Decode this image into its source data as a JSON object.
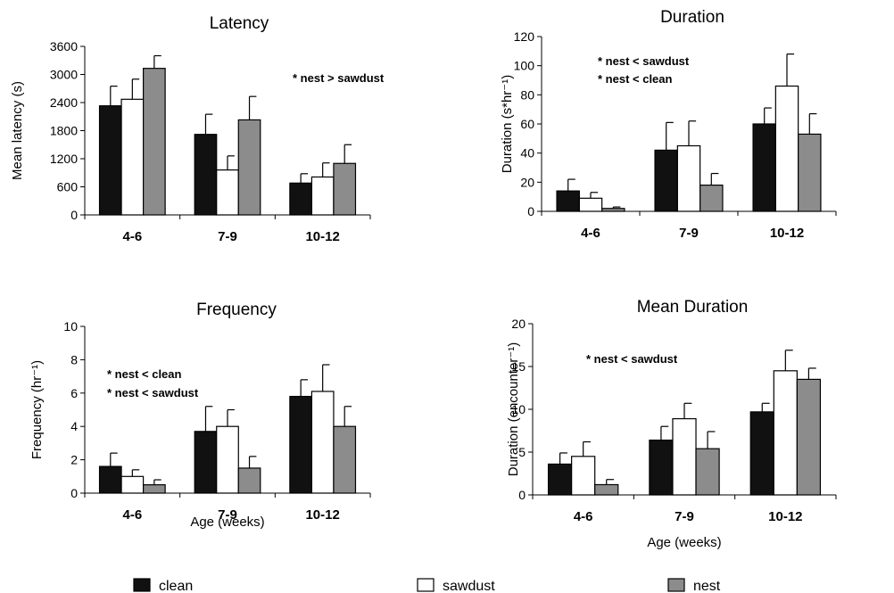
{
  "colors": {
    "clean": "#111111",
    "sawdust": "#ffffff",
    "nest": "#8c8c8c",
    "axis": "#000000"
  },
  "legend": [
    {
      "key": "clean",
      "label": "clean"
    },
    {
      "key": "sawdust",
      "label": "sawdust"
    },
    {
      "key": "nest",
      "label": "nest"
    }
  ],
  "chart_data": [
    {
      "type": "bar",
      "title": "Latency",
      "ylabel": "Mean latency (s)",
      "xlabel": "",
      "categories": [
        "4-6",
        "7-9",
        "10-12"
      ],
      "ylim": [
        0,
        3600
      ],
      "yticks": [
        "0",
        "600",
        "1200",
        "1800",
        "2400",
        "3000",
        "3600"
      ],
      "annotations": [
        "* nest > sawdust"
      ],
      "series": [
        {
          "name": "clean",
          "values": [
            2330,
            1720,
            680
          ],
          "errors": [
            420,
            430,
            200
          ]
        },
        {
          "name": "sawdust",
          "values": [
            2470,
            960,
            810
          ],
          "errors": [
            430,
            300,
            300
          ]
        },
        {
          "name": "nest",
          "values": [
            3130,
            2030,
            1100
          ],
          "errors": [
            270,
            500,
            400
          ]
        }
      ]
    },
    {
      "type": "bar",
      "title": "Duration",
      "ylabel": "Duration (s*hr⁻¹)",
      "xlabel": "",
      "categories": [
        "4-6",
        "7-9",
        "10-12"
      ],
      "ylim": [
        0,
        120
      ],
      "yticks": [
        "0",
        "20",
        "40",
        "60",
        "80",
        "100",
        "120"
      ],
      "annotations": [
        "* nest < sawdust",
        "* nest < clean"
      ],
      "series": [
        {
          "name": "clean",
          "values": [
            14,
            42,
            60
          ],
          "errors": [
            8,
            19,
            11
          ]
        },
        {
          "name": "sawdust",
          "values": [
            9,
            45,
            86
          ],
          "errors": [
            4,
            17,
            22
          ]
        },
        {
          "name": "nest",
          "values": [
            2,
            18,
            53
          ],
          "errors": [
            1,
            8,
            14
          ]
        }
      ]
    },
    {
      "type": "bar",
      "title": "Frequency",
      "ylabel": "Frequency (hr⁻¹)",
      "xlabel": "Age (weeks)",
      "categories": [
        "4-6",
        "7-9",
        "10-12"
      ],
      "ylim": [
        0,
        10
      ],
      "yticks": [
        "0",
        "2",
        "4",
        "6",
        "8",
        "10"
      ],
      "annotations": [
        "* nest < clean",
        "* nest < sawdust"
      ],
      "series": [
        {
          "name": "clean",
          "values": [
            1.6,
            3.7,
            5.8
          ],
          "errors": [
            0.8,
            1.5,
            1.0
          ]
        },
        {
          "name": "sawdust",
          "values": [
            1.0,
            4.0,
            6.1
          ],
          "errors": [
            0.4,
            1.0,
            1.6
          ]
        },
        {
          "name": "nest",
          "values": [
            0.5,
            1.5,
            4.0
          ],
          "errors": [
            0.3,
            0.7,
            1.2
          ]
        }
      ]
    },
    {
      "type": "bar",
      "title": "Mean Duration",
      "ylabel": "Duration (encounter⁻¹)",
      "xlabel": "Age (weeks)",
      "categories": [
        "4-6",
        "7-9",
        "10-12"
      ],
      "ylim": [
        0,
        20
      ],
      "yticks": [
        "0",
        "5",
        "10",
        "15",
        "20"
      ],
      "annotations": [
        "* nest < sawdust"
      ],
      "series": [
        {
          "name": "clean",
          "values": [
            3.6,
            6.4,
            9.7
          ],
          "errors": [
            1.3,
            1.6,
            1.0
          ]
        },
        {
          "name": "sawdust",
          "values": [
            4.5,
            8.9,
            14.5
          ],
          "errors": [
            1.7,
            1.8,
            2.4
          ]
        },
        {
          "name": "nest",
          "values": [
            1.2,
            5.4,
            13.5
          ],
          "errors": [
            0.6,
            2.0,
            1.3
          ]
        }
      ]
    }
  ]
}
